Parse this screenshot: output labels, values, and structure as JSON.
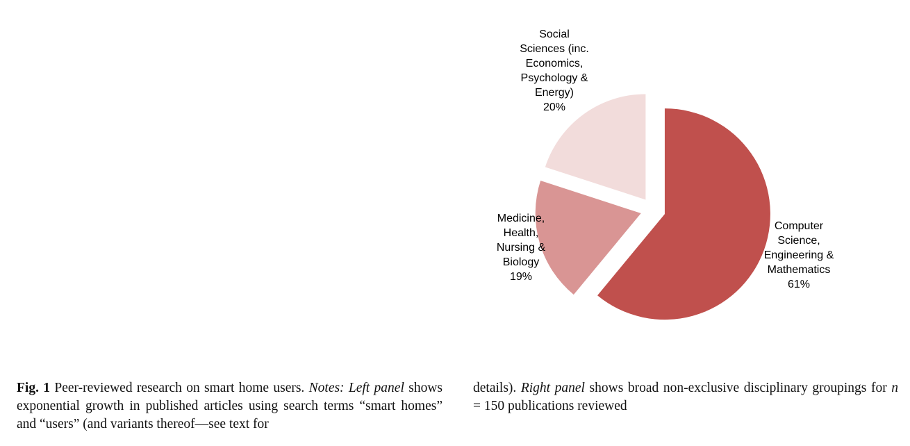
{
  "chart_data": {
    "type": "pie",
    "slices": [
      {
        "label_lines": [
          "Computer",
          "Science,",
          "Engineering &",
          "Mathematics"
        ],
        "percent_label": "61%",
        "value": 61,
        "color": "#c0504d"
      },
      {
        "label_lines": [
          "Medicine,",
          "Health,",
          "Nursing &",
          "Biology"
        ],
        "percent_label": "19%",
        "value": 19,
        "color": "#d99594"
      },
      {
        "label_lines": [
          "Social",
          "Sciences (inc.",
          "Economics,",
          "Psychology &",
          "Energy)"
        ],
        "percent_label": "20%",
        "value": 20,
        "color": "#f2dcdb"
      }
    ]
  },
  "caption": {
    "fig_label": "Fig. 1",
    "part1": " Peer-reviewed research on smart home users. ",
    "notes_label": "Notes: Left panel",
    "part2": " shows exponential growth in published articles using search terms “smart homes” and “users” (and variants thereof—see text for details). ",
    "right_panel_label": "Right panel",
    "part3": " shows broad non-exclusive disciplinary groupings for ",
    "n_symbol": "n",
    "part4": " = 150 publications reviewed"
  }
}
